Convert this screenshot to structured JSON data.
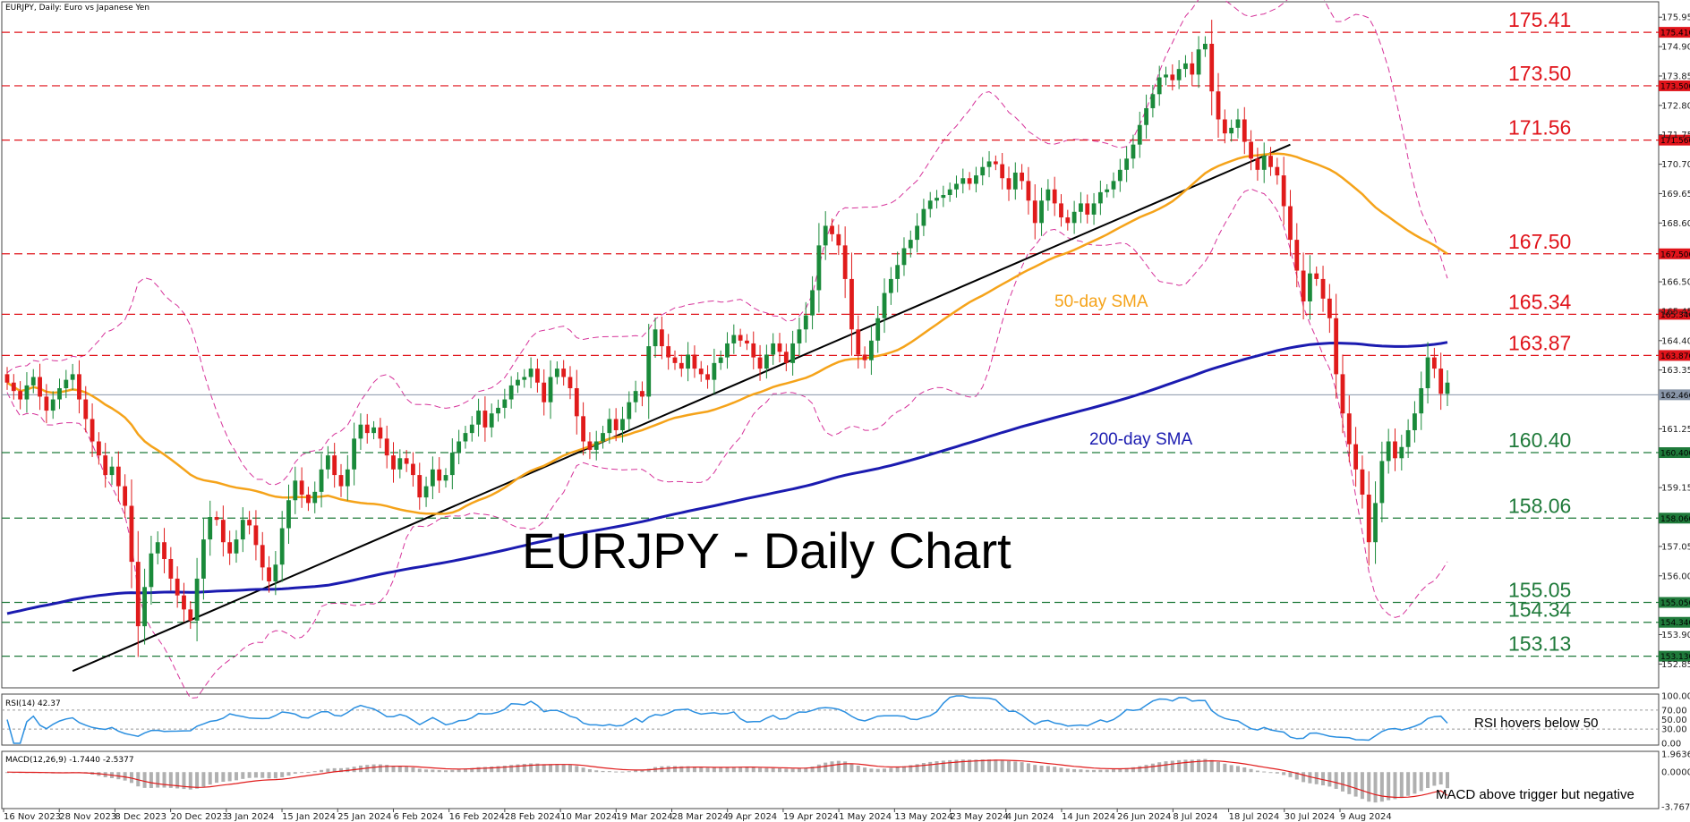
{
  "header": {
    "title": "EURJPY, Daily:  Euro vs Japanese Yen"
  },
  "main_title": "EURJPY - Daily Chart",
  "colors": {
    "red_level": "#e0131a",
    "green_level": "#1f7a3a",
    "sma50": "#f5a31a",
    "sma200": "#1b1bb0",
    "bands": "#d6339a",
    "trend": "#000000",
    "bull": "#1a8a3a",
    "bear": "#e01b1b",
    "rsi": "#2b8fe0",
    "macd_signal": "#e01b1b",
    "macd_hist": "#b0b0b0"
  },
  "annotations": {
    "sma50": "50-day SMA",
    "sma200": "200-day SMA",
    "rsi_note": "RSI hovers below 50",
    "macd_note": "MACD above trigger but negative"
  },
  "chart_data": {
    "type": "candlestick",
    "title": "EURJPY, Daily:  Euro vs Japanese Yen",
    "ylim": [
      152.0,
      176.5
    ],
    "price_ticks": [
      "175.950",
      "174.900",
      "173.850",
      "172.800",
      "171.750",
      "170.700",
      "169.650",
      "168.600",
      "166.500",
      "165.450",
      "164.400",
      "163.350",
      "161.250",
      "159.150",
      "157.050",
      "156.000",
      "153.900",
      "152.850"
    ],
    "x_labels": [
      "16 Nov 2023",
      "28 Nov 2023",
      "8 Dec 2023",
      "20 Dec 2023",
      "3 Jan 2024",
      "15 Jan 2024",
      "25 Jan 2024",
      "6 Feb 2024",
      "16 Feb 2024",
      "28 Feb 2024",
      "10 Mar 2024",
      "19 Mar 2024",
      "28 Mar 2024",
      "9 Apr 2024",
      "19 Apr 2024",
      "1 May 2024",
      "13 May 2024",
      "23 May 2024",
      "4 Jun 2024",
      "14 Jun 2024",
      "26 Jun 2024",
      "8 Jul 2024",
      "18 Jul 2024",
      "30 Jul 2024",
      "9 Aug 2024"
    ],
    "current_price": 162.466,
    "current_price_label": "162.466",
    "levels": [
      {
        "value": 175.41,
        "label": "175.41",
        "tag": "175.410",
        "kind": "resistance"
      },
      {
        "value": 173.5,
        "label": "173.50",
        "tag": "173.500",
        "kind": "resistance"
      },
      {
        "value": 171.56,
        "label": "171.56",
        "tag": "171.560",
        "kind": "resistance"
      },
      {
        "value": 167.5,
        "label": "167.50",
        "tag": "167.500",
        "kind": "resistance"
      },
      {
        "value": 165.34,
        "label": "165.34",
        "tag": "165.340",
        "kind": "resistance"
      },
      {
        "value": 163.87,
        "label": "163.87",
        "tag": "163.870",
        "kind": "resistance"
      },
      {
        "value": 160.4,
        "label": "160.40",
        "tag": "160.400",
        "kind": "support"
      },
      {
        "value": 158.06,
        "label": "158.06",
        "tag": "158.060",
        "kind": "support"
      },
      {
        "value": 155.05,
        "label": "155.05",
        "tag": "155.050",
        "kind": "support"
      },
      {
        "value": 154.34,
        "label": "154.34",
        "tag": "154.340",
        "kind": "support"
      },
      {
        "value": 153.13,
        "label": "153.13",
        "tag": "153.130",
        "kind": "support"
      }
    ],
    "closes": [
      162.9,
      162.6,
      162.3,
      162.8,
      163.1,
      162.4,
      161.9,
      162.3,
      162.7,
      163.0,
      163.2,
      162.3,
      161.6,
      160.8,
      160.3,
      159.6,
      159.9,
      159.2,
      158.5,
      156.5,
      154.2,
      155.6,
      156.8,
      157.2,
      156.6,
      155.9,
      155.3,
      154.8,
      154.4,
      155.9,
      157.3,
      158.1,
      158.0,
      157.2,
      156.8,
      157.3,
      158.0,
      157.8,
      157.1,
      156.3,
      155.8,
      156.4,
      157.7,
      158.7,
      159.4,
      158.9,
      158.6,
      159.0,
      159.8,
      160.3,
      159.6,
      159.2,
      159.8,
      160.9,
      161.4,
      161.1,
      161.3,
      160.9,
      160.3,
      159.8,
      160.2,
      160.0,
      159.6,
      158.8,
      159.2,
      159.8,
      159.4,
      159.6,
      160.4,
      160.8,
      161.1,
      161.4,
      161.9,
      161.3,
      161.8,
      162.0,
      162.3,
      162.8,
      163.0,
      163.1,
      163.4,
      162.9,
      162.2,
      163.1,
      163.4,
      163.1,
      162.7,
      161.7,
      160.8,
      160.5,
      160.8,
      161.1,
      161.6,
      161.2,
      161.6,
      162.2,
      162.6,
      162.4,
      164.2,
      164.8,
      164.2,
      163.8,
      163.6,
      163.4,
      163.9,
      163.4,
      163.2,
      163.0,
      163.6,
      163.8,
      164.3,
      164.6,
      164.4,
      164.3,
      163.8,
      163.4,
      163.9,
      164.3,
      164.0,
      163.6,
      164.3,
      164.8,
      165.3,
      166.2,
      167.8,
      168.5,
      168.2,
      167.8,
      166.6,
      164.8,
      163.9,
      163.7,
      164.4,
      165.2,
      166.1,
      166.6,
      167.1,
      167.7,
      168.0,
      168.5,
      169.1,
      169.4,
      169.5,
      169.6,
      169.8,
      170.0,
      170.2,
      170.0,
      170.3,
      170.6,
      170.8,
      170.7,
      170.2,
      169.8,
      170.4,
      170.1,
      169.4,
      168.6,
      169.4,
      169.8,
      169.3,
      168.8,
      168.6,
      169.0,
      169.3,
      168.9,
      169.3,
      169.7,
      169.8,
      170.1,
      170.5,
      170.9,
      171.4,
      172.1,
      172.7,
      173.2,
      173.8,
      173.9,
      173.7,
      174.1,
      174.3,
      173.9,
      174.8,
      175.0,
      173.3,
      172.3,
      171.8,
      172.0,
      172.3,
      171.5,
      170.9,
      170.5,
      171.0,
      170.6,
      170.3,
      169.2,
      168.0,
      166.9,
      165.8,
      166.8,
      166.6,
      165.9,
      165.2,
      163.2,
      161.8,
      160.7,
      159.8,
      158.9,
      157.2,
      158.6,
      160.1,
      160.8,
      160.2,
      160.6,
      161.2,
      161.8,
      162.7,
      163.8,
      163.4,
      162.5,
      162.9
    ],
    "rsi": {
      "label": "RSI(14) 42.37",
      "value": 42.37,
      "ticks": [
        "100.00",
        "70.00",
        "50.00",
        "30.00",
        "0.00"
      ]
    },
    "macd": {
      "label": "MACD(12,26,9) -1.7440 -2.5377",
      "macd": -1.744,
      "signal": -2.5377,
      "ticks": [
        "1.9636",
        "0.0000",
        "-3.7676"
      ]
    }
  }
}
